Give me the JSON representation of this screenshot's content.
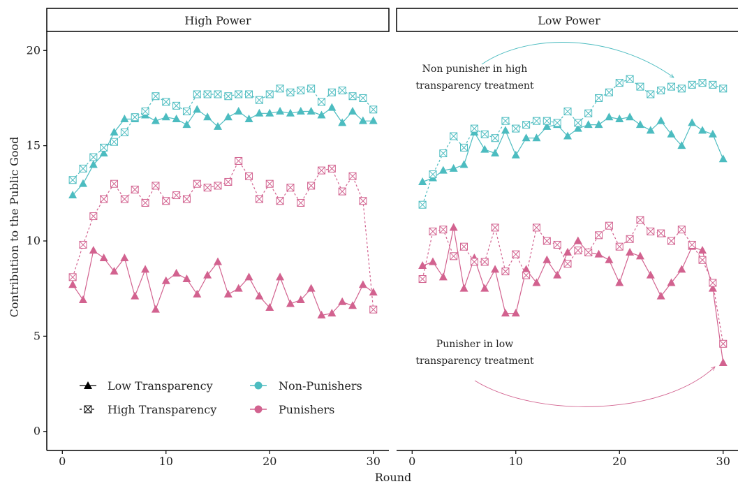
{
  "chart_data": {
    "type": "line",
    "ylabel": "Contribution to the Public Good",
    "xlabel": "Round",
    "xlim": [
      -1.5,
      31.5
    ],
    "ylim": [
      -1,
      21
    ],
    "xticks": [
      0,
      10,
      20,
      30
    ],
    "yticks": [
      0,
      5,
      10,
      15,
      20
    ],
    "grid": false,
    "colors": {
      "non_punishers": "#4cbcc0",
      "punishers": "#d2628f"
    },
    "legend": {
      "placement": "bottom-left",
      "shape_items": [
        {
          "label": "Low Transparency",
          "style": "solid-triangle"
        },
        {
          "label": "High Transparency",
          "style": "dashed-boxcross"
        }
      ],
      "color_items": [
        {
          "label": "Non-Punishers",
          "group": "non_punishers"
        },
        {
          "label": "Punishers",
          "group": "punishers"
        }
      ]
    },
    "panels": [
      {
        "title": "High Power",
        "series": [
          {
            "group": "non_punishers",
            "transparency": "low",
            "x": [
              1,
              2,
              3,
              4,
              5,
              6,
              7,
              8,
              9,
              10,
              11,
              12,
              13,
              14,
              15,
              16,
              17,
              18,
              19,
              20,
              21,
              22,
              23,
              24,
              25,
              26,
              27,
              28,
              29,
              30
            ],
            "y": [
              12.4,
              13.0,
              14.0,
              14.6,
              15.7,
              16.4,
              16.4,
              16.6,
              16.3,
              16.5,
              16.4,
              16.1,
              16.9,
              16.5,
              16.0,
              16.5,
              16.8,
              16.4,
              16.7,
              16.7,
              16.8,
              16.7,
              16.8,
              16.8,
              16.6,
              17.0,
              16.2,
              16.8,
              16.3,
              16.3
            ]
          },
          {
            "group": "non_punishers",
            "transparency": "high",
            "x": [
              1,
              2,
              3,
              4,
              5,
              6,
              7,
              8,
              9,
              10,
              11,
              12,
              13,
              14,
              15,
              16,
              17,
              18,
              19,
              20,
              21,
              22,
              23,
              24,
              25,
              26,
              27,
              28,
              29,
              30
            ],
            "y": [
              13.2,
              13.8,
              14.4,
              14.9,
              15.2,
              15.7,
              16.5,
              16.8,
              17.6,
              17.3,
              17.1,
              16.8,
              17.7,
              17.7,
              17.7,
              17.6,
              17.7,
              17.7,
              17.4,
              17.7,
              18.0,
              17.8,
              17.9,
              18.0,
              17.3,
              17.8,
              17.9,
              17.6,
              17.5,
              16.9
            ]
          },
          {
            "group": "punishers",
            "transparency": "low",
            "x": [
              1,
              2,
              3,
              4,
              5,
              6,
              7,
              8,
              9,
              10,
              11,
              12,
              13,
              14,
              15,
              16,
              17,
              18,
              19,
              20,
              21,
              22,
              23,
              24,
              25,
              26,
              27,
              28,
              29,
              30
            ],
            "y": [
              7.7,
              6.9,
              9.5,
              9.1,
              8.4,
              9.1,
              7.1,
              8.5,
              6.4,
              7.9,
              8.3,
              8.0,
              7.2,
              8.2,
              8.9,
              7.2,
              7.5,
              8.1,
              7.1,
              6.5,
              8.1,
              6.7,
              6.9,
              7.5,
              6.1,
              6.2,
              6.8,
              6.6,
              7.7,
              7.3
            ]
          },
          {
            "group": "punishers",
            "transparency": "high",
            "x": [
              1,
              2,
              3,
              4,
              5,
              6,
              7,
              8,
              9,
              10,
              11,
              12,
              13,
              14,
              15,
              16,
              17,
              18,
              19,
              20,
              21,
              22,
              23,
              24,
              25,
              26,
              27,
              28,
              29,
              30
            ],
            "y": [
              8.1,
              9.8,
              11.3,
              12.2,
              13.0,
              12.2,
              12.7,
              12.0,
              12.9,
              12.1,
              12.4,
              12.2,
              13.0,
              12.8,
              12.9,
              13.1,
              14.2,
              13.4,
              12.2,
              13.0,
              12.1,
              12.8,
              12.0,
              12.9,
              13.7,
              13.8,
              12.6,
              13.4,
              12.1,
              6.4
            ]
          }
        ],
        "annotations": []
      },
      {
        "title": "Low Power",
        "series": [
          {
            "group": "non_punishers",
            "transparency": "low",
            "x": [
              1,
              2,
              3,
              4,
              5,
              6,
              7,
              8,
              9,
              10,
              11,
              12,
              13,
              14,
              15,
              16,
              17,
              18,
              19,
              20,
              21,
              22,
              23,
              24,
              25,
              26,
              27,
              28,
              29,
              30
            ],
            "y": [
              13.1,
              13.3,
              13.7,
              13.8,
              14.0,
              15.7,
              14.8,
              14.6,
              15.8,
              14.5,
              15.4,
              15.4,
              16.0,
              16.1,
              15.5,
              15.9,
              16.1,
              16.1,
              16.5,
              16.4,
              16.5,
              16.1,
              15.8,
              16.3,
              15.6,
              15.0,
              16.2,
              15.8,
              15.6,
              14.3
            ]
          },
          {
            "group": "non_punishers",
            "transparency": "high",
            "x": [
              1,
              2,
              3,
              4,
              5,
              6,
              7,
              8,
              9,
              10,
              11,
              12,
              13,
              14,
              15,
              16,
              17,
              18,
              19,
              20,
              21,
              22,
              23,
              24,
              25,
              26,
              27,
              28,
              29,
              30
            ],
            "y": [
              11.9,
              13.5,
              14.6,
              15.5,
              14.9,
              15.9,
              15.6,
              15.4,
              16.3,
              15.9,
              16.1,
              16.3,
              16.3,
              16.2,
              16.8,
              16.2,
              16.7,
              17.5,
              17.8,
              18.3,
              18.5,
              18.1,
              17.7,
              17.9,
              18.1,
              18.0,
              18.2,
              18.3,
              18.2,
              18.0
            ]
          },
          {
            "group": "punishers",
            "transparency": "low",
            "x": [
              1,
              2,
              3,
              4,
              5,
              6,
              7,
              8,
              9,
              10,
              11,
              12,
              13,
              14,
              15,
              16,
              17,
              18,
              19,
              20,
              21,
              22,
              23,
              24,
              25,
              26,
              27,
              28,
              29,
              30
            ],
            "y": [
              8.7,
              8.9,
              8.1,
              10.7,
              7.5,
              9.1,
              7.5,
              8.5,
              6.2,
              6.2,
              8.5,
              7.8,
              9.0,
              8.2,
              9.4,
              10.0,
              9.4,
              9.3,
              9.0,
              7.8,
              9.4,
              9.2,
              8.2,
              7.1,
              7.8,
              8.5,
              9.7,
              9.5,
              7.5,
              3.6
            ]
          },
          {
            "group": "punishers",
            "transparency": "high",
            "x": [
              1,
              2,
              3,
              4,
              5,
              6,
              7,
              8,
              9,
              10,
              11,
              12,
              13,
              14,
              15,
              16,
              17,
              18,
              19,
              20,
              21,
              22,
              23,
              24,
              25,
              26,
              27,
              28,
              29,
              30
            ],
            "y": [
              8.0,
              10.5,
              10.6,
              9.2,
              9.7,
              8.9,
              8.9,
              10.7,
              8.4,
              9.3,
              8.2,
              10.7,
              10.0,
              9.8,
              8.8,
              9.5,
              9.4,
              10.3,
              10.8,
              9.7,
              10.1,
              11.1,
              10.5,
              10.4,
              10.0,
              10.6,
              9.8,
              9.0,
              7.8,
              4.6
            ]
          }
        ],
        "annotations": [
          {
            "lines": [
              "Non punisher in high",
              "transparency treatment"
            ],
            "group": "non_punishers",
            "arrow_to": [
              25,
              18.2
            ]
          },
          {
            "lines": [
              "Punisher in low",
              "transparency treatment"
            ],
            "group": "punishers",
            "arrow_to": [
              29.2,
              3.5
            ]
          }
        ]
      }
    ]
  }
}
